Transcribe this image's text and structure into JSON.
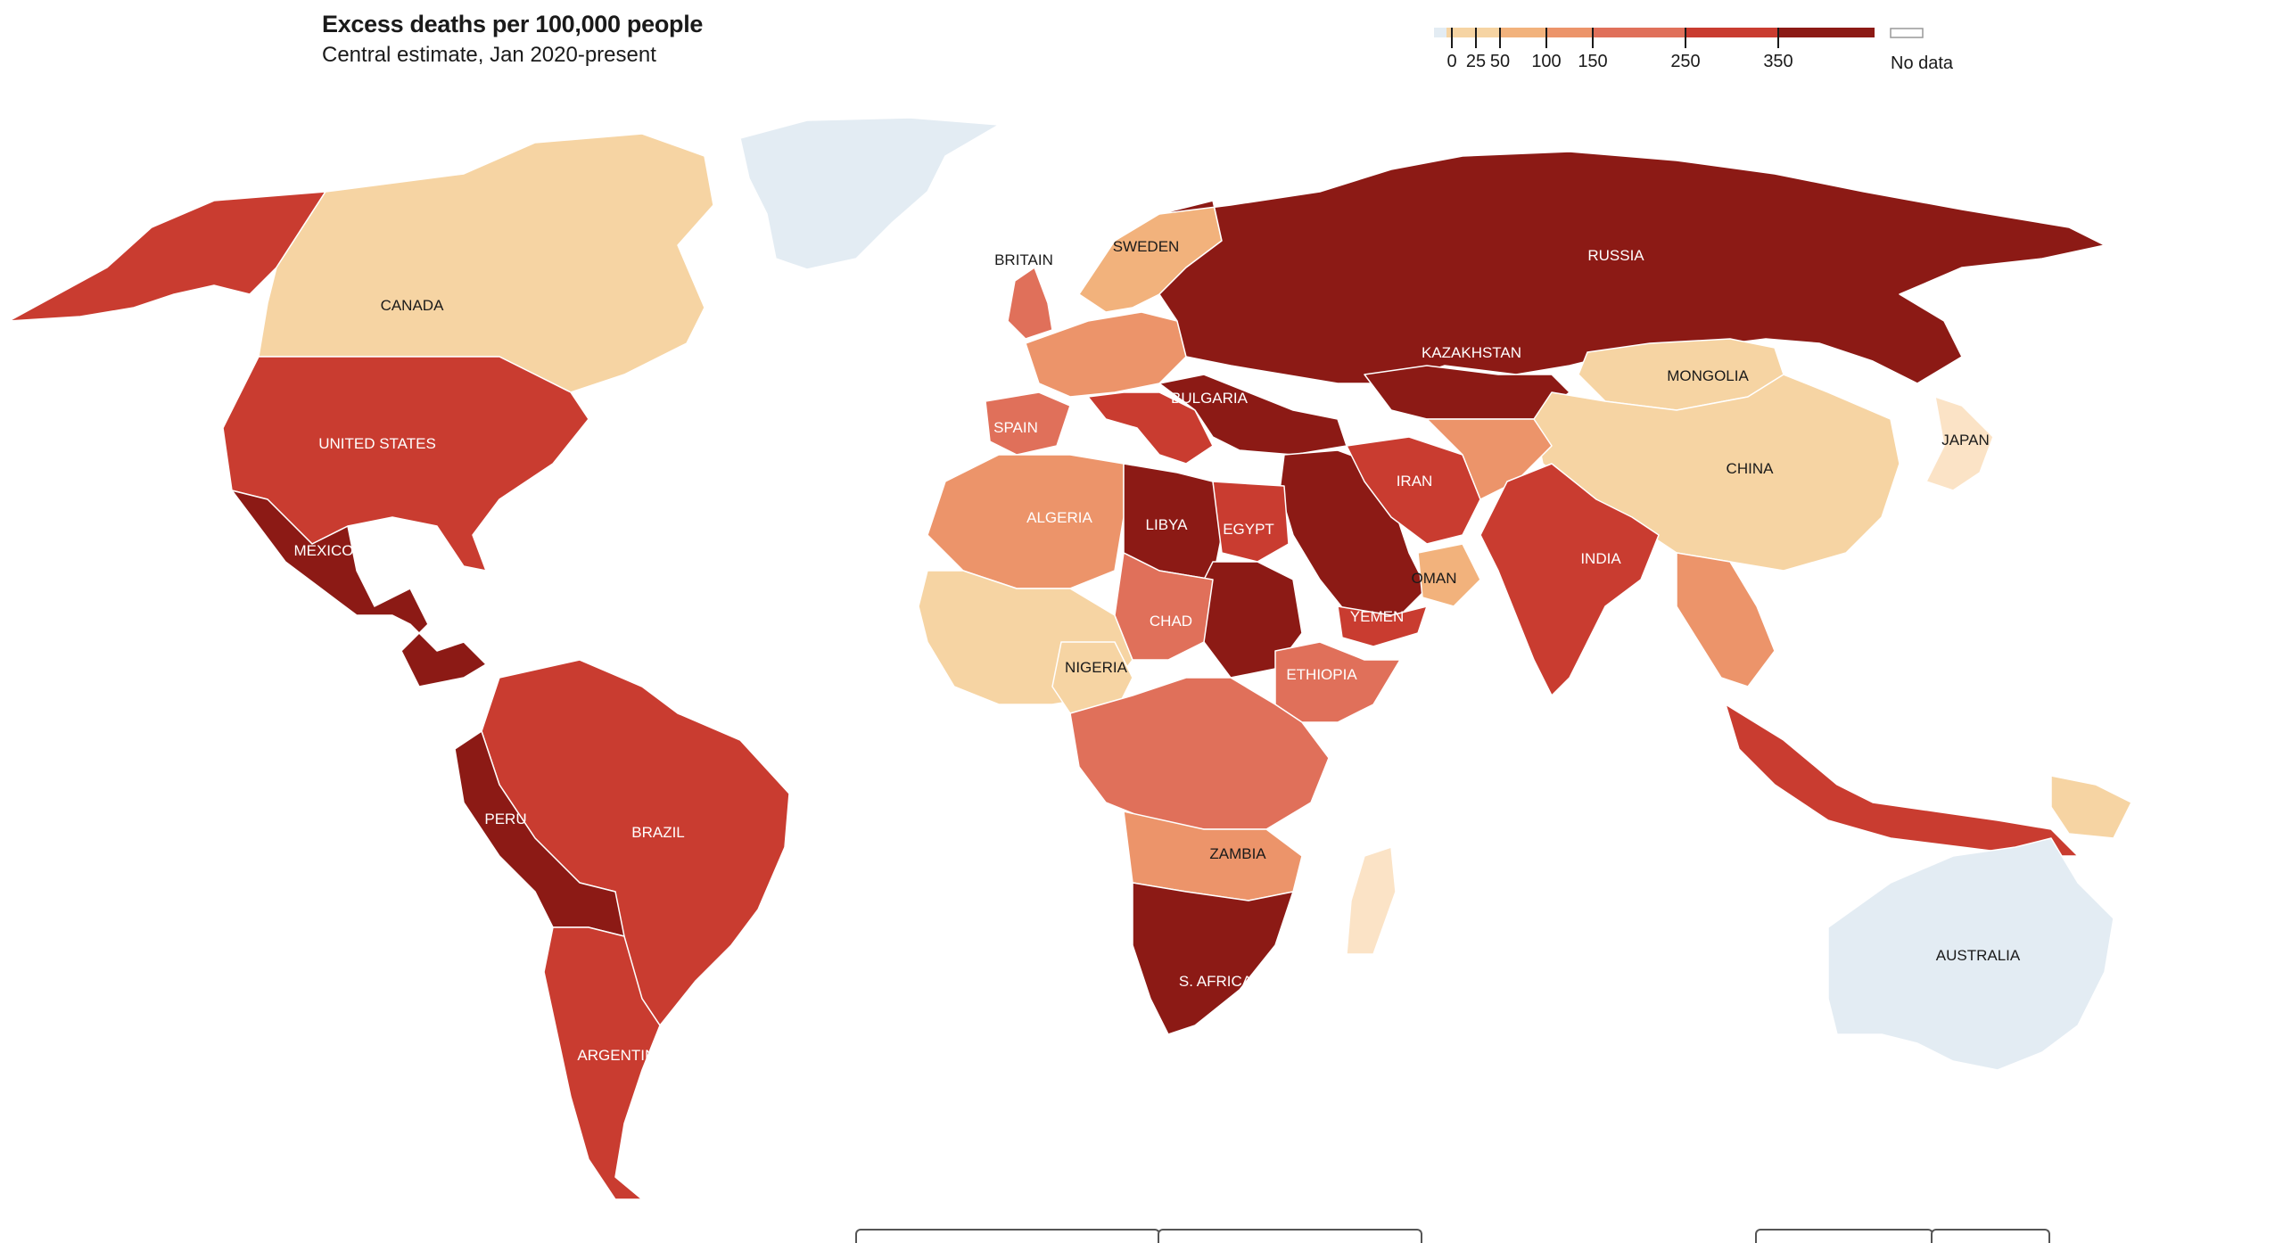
{
  "header": {
    "title": "Excess deaths per 100,000 people",
    "subtitle": "Central estimate, Jan 2020-present"
  },
  "legend": {
    "ticks": [
      "0",
      "25",
      "50",
      "100",
      "150",
      "250",
      "350"
    ],
    "tick_values": [
      0,
      25,
      50,
      100,
      150,
      250,
      350
    ],
    "no_data_label": "No data",
    "colors": [
      "#e3ecf3",
      "#f6d4a3",
      "#f2b27c",
      "#ec946a",
      "#e0705a",
      "#c93c30",
      "#8c1a15"
    ],
    "no_data_color": "#ffffff"
  },
  "ocean_color": "#ffffff",
  "countries": [
    {
      "label": "CANADA",
      "color": "#f6d4a3"
    },
    {
      "label": "UNITED STATES",
      "color": "#c93c30"
    },
    {
      "label": "MEXICO",
      "color": "#8c1a15"
    },
    {
      "label": "PERU",
      "color": "#8c1a15"
    },
    {
      "label": "BRAZIL",
      "color": "#c93c30"
    },
    {
      "label": "ARGENTINA",
      "color": "#c93c30"
    },
    {
      "label": "BRITAIN",
      "color": "#e0705a"
    },
    {
      "label": "SWEDEN",
      "color": "#f2b27c"
    },
    {
      "label": "SPAIN",
      "color": "#e0705a"
    },
    {
      "label": "BULGARIA",
      "color": "#8c1a15"
    },
    {
      "label": "ALGERIA",
      "color": "#ec946a"
    },
    {
      "label": "LIBYA",
      "color": "#8c1a15"
    },
    {
      "label": "EGYPT",
      "color": "#c93c30"
    },
    {
      "label": "CHAD",
      "color": "#e0705a"
    },
    {
      "label": "NIGERIA",
      "color": "#f6d4a3"
    },
    {
      "label": "ETHIOPIA",
      "color": "#e0705a"
    },
    {
      "label": "ZAMBIA",
      "color": "#ec946a"
    },
    {
      "label": "S. AFRICA",
      "color": "#8c1a15"
    },
    {
      "label": "RUSSIA",
      "color": "#8c1a15"
    },
    {
      "label": "KAZAKHSTAN",
      "color": "#8c1a15"
    },
    {
      "label": "MONGOLIA",
      "color": "#f6d4a3"
    },
    {
      "label": "CHINA",
      "color": "#f6d4a3"
    },
    {
      "label": "JAPAN",
      "color": "#fbe3c6"
    },
    {
      "label": "IRAN",
      "color": "#c93c30"
    },
    {
      "label": "OMAN",
      "color": "#f2b27c"
    },
    {
      "label": "YEMEN",
      "color": "#c93c30"
    },
    {
      "label": "INDIA",
      "color": "#c93c30"
    },
    {
      "label": "AUSTRALIA",
      "color": "#e3ecf3"
    }
  ]
}
